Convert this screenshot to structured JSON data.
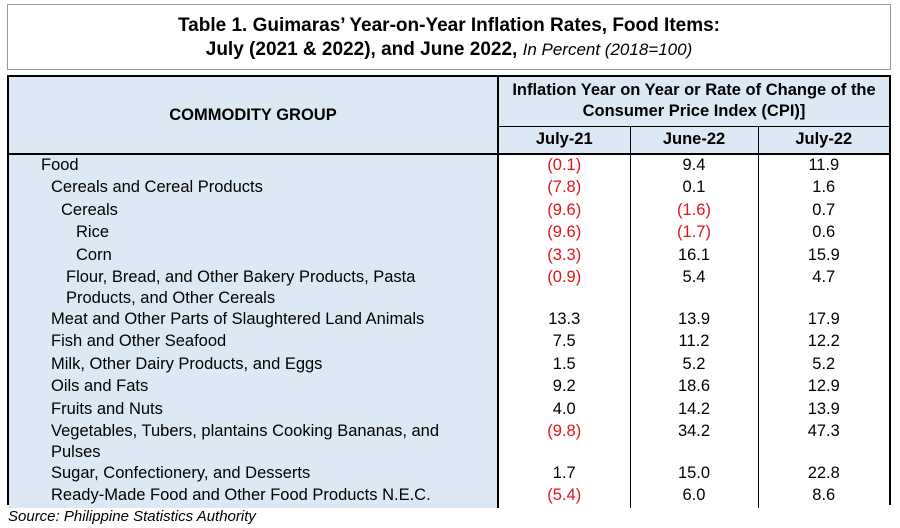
{
  "title": {
    "line1": "Table 1. Guimaras’ Year-on-Year Inflation Rates, Food Items:",
    "line2_bold": "July (2021 & 2022), and June 2022,",
    "line2_italic": "In Percent (2018=100)"
  },
  "table": {
    "header_commodity": "COMMODITY GROUP",
    "header_group": "Inflation Year on Year or Rate of Change of the Consumer Price Index (CPI)]",
    "columns": [
      "July-21",
      "June-22",
      "July-22"
    ],
    "rows": [
      {
        "label": "Food",
        "level": 0,
        "values": [
          "(0.1)",
          "9.4",
          "11.9"
        ],
        "negative": [
          true,
          false,
          false
        ]
      },
      {
        "label": "Cereals and Cereal Products",
        "level": 1,
        "values": [
          "(7.8)",
          "0.1",
          "1.6"
        ],
        "negative": [
          true,
          false,
          false
        ]
      },
      {
        "label": "Cereals",
        "level": 2,
        "values": [
          "(9.6)",
          "(1.6)",
          "0.7"
        ],
        "negative": [
          true,
          true,
          false
        ]
      },
      {
        "label": "Rice",
        "level": 3,
        "values": [
          "(9.6)",
          "(1.7)",
          "0.6"
        ],
        "negative": [
          true,
          true,
          false
        ]
      },
      {
        "label": "Corn",
        "level": 3,
        "values": [
          "(3.3)",
          "16.1",
          "15.9"
        ],
        "negative": [
          true,
          false,
          false
        ]
      },
      {
        "label": "Flour, Bread, and Other Bakery Products, Pasta Products, and Other Cereals",
        "level": 2,
        "values": [
          "(0.9)",
          "5.4",
          "4.7"
        ],
        "negative": [
          true,
          false,
          false
        ]
      },
      {
        "label": "Meat and Other Parts of Slaughtered Land Animals",
        "level": 1,
        "values": [
          "13.3",
          "13.9",
          "17.9"
        ],
        "negative": [
          false,
          false,
          false
        ]
      },
      {
        "label": "Fish and Other Seafood",
        "level": 1,
        "values": [
          "7.5",
          "11.2",
          "12.2"
        ],
        "negative": [
          false,
          false,
          false
        ]
      },
      {
        "label": "Milk, Other Dairy Products, and Eggs",
        "level": 1,
        "values": [
          "1.5",
          "5.2",
          "5.2"
        ],
        "negative": [
          false,
          false,
          false
        ]
      },
      {
        "label": "Oils and Fats",
        "level": 1,
        "values": [
          "9.2",
          "18.6",
          "12.9"
        ],
        "negative": [
          false,
          false,
          false
        ]
      },
      {
        "label": "Fruits and Nuts",
        "level": 1,
        "values": [
          "4.0",
          "14.2",
          "13.9"
        ],
        "negative": [
          false,
          false,
          false
        ]
      },
      {
        "label": "Vegetables, Tubers, plantains Cooking Bananas, and Pulses",
        "level": 1,
        "values": [
          "(9.8)",
          "34.2",
          "47.3"
        ],
        "negative": [
          true,
          false,
          false
        ]
      },
      {
        "label": "Sugar, Confectionery, and Desserts",
        "level": 1,
        "values": [
          "1.7",
          "15.0",
          "22.8"
        ],
        "negative": [
          false,
          false,
          false
        ]
      },
      {
        "label": "Ready-Made Food and Other Food Products N.E.C.",
        "level": 1,
        "values": [
          "(5.4)",
          "6.0",
          "8.6"
        ],
        "negative": [
          true,
          false,
          false
        ]
      }
    ]
  },
  "source": "Source: Philippine Statistics Authority",
  "colors": {
    "header_bg": "#dce8f4",
    "negative_text": "#e0141b"
  }
}
